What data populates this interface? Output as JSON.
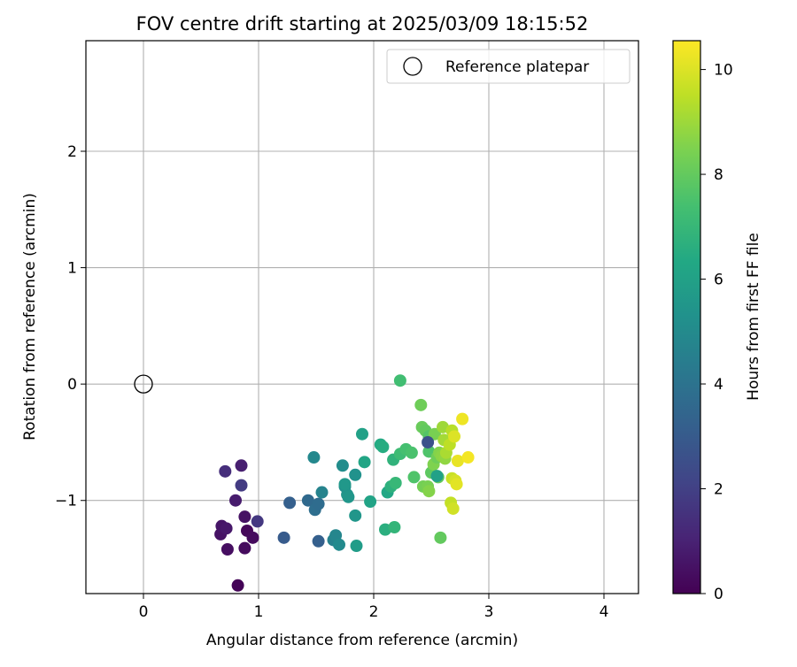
{
  "chart_data": {
    "type": "scatter",
    "title": "FOV centre drift starting at 2025/03/09 18:15:52",
    "xlabel": "Angular distance from reference (arcmin)",
    "ylabel": "Rotation from reference (arcmin)",
    "xlim": [
      -0.5,
      4.3
    ],
    "ylim": [
      -1.8,
      2.95
    ],
    "xticks": [
      0,
      1,
      2,
      3,
      4
    ],
    "yticks": [
      -1,
      0,
      1,
      2
    ],
    "xtick_labels": [
      "0",
      "1",
      "2",
      "3",
      "4"
    ],
    "ytick_labels": [
      "−1",
      "0",
      "1",
      "2"
    ],
    "grid": true,
    "legend": {
      "placement": "top-right",
      "entries": [
        "Reference platepar"
      ]
    },
    "colorbar": {
      "label": "Hours from first FF file",
      "range": [
        0,
        10.55
      ],
      "ticks": [
        0,
        2,
        4,
        6,
        8,
        10
      ],
      "tick_labels": [
        "0",
        "2",
        "4",
        "6",
        "8",
        "10"
      ],
      "colormap": "viridis"
    },
    "reference_point": {
      "name": "Reference platepar",
      "x": 0,
      "y": 0
    },
    "series": [
      {
        "name": "",
        "points": [
          [
            0.82,
            -1.73,
            0.1
          ],
          [
            0.73,
            -1.42,
            0.4
          ],
          [
            0.88,
            -1.41,
            0.3
          ],
          [
            0.67,
            -1.29,
            0.5
          ],
          [
            0.68,
            -1.22,
            0.6
          ],
          [
            0.72,
            -1.24,
            0.7
          ],
          [
            0.9,
            -1.26,
            0.2
          ],
          [
            0.95,
            -1.32,
            0.3
          ],
          [
            0.88,
            -1.14,
            0.5
          ],
          [
            0.8,
            -1.0,
            0.8
          ],
          [
            0.71,
            -0.75,
            1.4
          ],
          [
            0.85,
            -0.7,
            0.9
          ],
          [
            0.85,
            -0.87,
            1.8
          ],
          [
            0.99,
            -1.18,
            1.7
          ],
          [
            1.22,
            -1.32,
            3.0
          ],
          [
            1.27,
            -1.02,
            3.2
          ],
          [
            1.43,
            -1.0,
            3.6
          ],
          [
            1.49,
            -1.08,
            3.8
          ],
          [
            1.52,
            -1.03,
            3.7
          ],
          [
            1.52,
            -1.35,
            3.2
          ],
          [
            1.48,
            -0.63,
            4.9
          ],
          [
            1.55,
            -0.93,
            4.7
          ],
          [
            1.65,
            -1.34,
            4.6
          ],
          [
            1.67,
            -1.3,
            4.8
          ],
          [
            1.7,
            -1.38,
            5.0
          ],
          [
            1.73,
            -0.7,
            5.1
          ],
          [
            1.75,
            -0.88,
            5.2
          ],
          [
            1.77,
            -0.95,
            5.4
          ],
          [
            1.78,
            -0.97,
            5.5
          ],
          [
            1.75,
            -0.86,
            5.6
          ],
          [
            1.84,
            -0.78,
            5.3
          ],
          [
            1.84,
            -1.13,
            5.5
          ],
          [
            1.85,
            -1.39,
            5.8
          ],
          [
            1.9,
            -0.43,
            6.0
          ],
          [
            1.92,
            -0.67,
            6.2
          ],
          [
            1.97,
            -1.01,
            6.1
          ],
          [
            2.06,
            -0.52,
            6.4
          ],
          [
            2.08,
            -0.54,
            6.5
          ],
          [
            2.1,
            -1.25,
            6.6
          ],
          [
            2.12,
            -0.93,
            6.3
          ],
          [
            2.15,
            -0.88,
            6.7
          ],
          [
            2.17,
            -0.65,
            6.8
          ],
          [
            2.18,
            -1.23,
            6.9
          ],
          [
            2.19,
            -0.85,
            7.0
          ],
          [
            2.23,
            -0.6,
            7.2
          ],
          [
            2.23,
            0.03,
            7.3
          ],
          [
            2.28,
            -0.56,
            7.4
          ],
          [
            2.33,
            -0.59,
            7.5
          ],
          [
            2.35,
            -0.8,
            7.6
          ],
          [
            2.41,
            -0.18,
            8.2
          ],
          [
            2.42,
            -0.37,
            8.1
          ],
          [
            2.43,
            -0.88,
            8.3
          ],
          [
            2.45,
            -0.4,
            8.0
          ],
          [
            2.47,
            -0.88,
            8.4
          ],
          [
            2.48,
            -0.58,
            7.6
          ],
          [
            2.48,
            -0.45,
            7.7
          ],
          [
            2.48,
            -0.92,
            8.6
          ],
          [
            2.5,
            -0.76,
            7.9
          ],
          [
            2.52,
            -0.69,
            8.5
          ],
          [
            2.53,
            -0.43,
            8.4
          ],
          [
            2.55,
            -0.63,
            8.2
          ],
          [
            2.56,
            -0.8,
            8.0
          ],
          [
            2.57,
            -0.59,
            8.6
          ],
          [
            2.58,
            -1.32,
            8.0
          ],
          [
            2.59,
            -0.62,
            8.7
          ],
          [
            2.6,
            -0.37,
            9.0
          ],
          [
            2.61,
            -0.48,
            9.1
          ],
          [
            2.62,
            -0.64,
            8.8
          ],
          [
            2.63,
            -0.59,
            9.2
          ],
          [
            2.66,
            -0.52,
            9.5
          ],
          [
            2.67,
            -1.02,
            9.6
          ],
          [
            2.68,
            -0.4,
            9.4
          ],
          [
            2.68,
            -0.81,
            9.7
          ],
          [
            2.69,
            -1.07,
            9.8
          ],
          [
            2.7,
            -0.45,
            10.0
          ],
          [
            2.71,
            -0.83,
            9.9
          ],
          [
            2.72,
            -0.86,
            10.1
          ],
          [
            2.73,
            -0.66,
            10.2
          ],
          [
            2.77,
            -0.3,
            10.3
          ],
          [
            2.82,
            -0.63,
            10.4
          ],
          [
            2.47,
            -0.5,
            2.6
          ],
          [
            2.55,
            -0.79,
            6.0
          ]
        ]
      }
    ]
  }
}
